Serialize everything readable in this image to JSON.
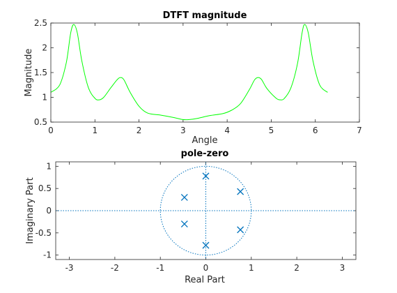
{
  "colors": {
    "magnitude_line": "#00ff00",
    "pole_zero": "#0072bd",
    "axes": "#262626"
  },
  "chart_data": [
    {
      "type": "line",
      "title": "DTFT magnitude",
      "xlabel": "Angle",
      "ylabel": "Magnitude",
      "xlim": [
        0,
        7
      ],
      "ylim": [
        0.5,
        2.5
      ],
      "xticks": [
        "0",
        "1",
        "2",
        "3",
        "4",
        "5",
        "6",
        "7"
      ],
      "yticks": [
        "0.5",
        "1",
        "1.5",
        "2",
        "2.5"
      ],
      "grid": false,
      "series": [
        {
          "x": [
            0,
            0.2,
            0.35,
            0.45,
            0.52,
            0.6,
            0.7,
            0.85,
            1.0,
            1.1,
            1.2,
            1.35,
            1.5,
            1.58,
            1.66,
            1.8,
            2.0,
            2.2,
            2.5,
            2.8,
            3.0,
            3.14,
            3.3,
            3.6,
            3.9,
            4.1,
            4.3,
            4.5,
            4.62,
            4.7,
            4.78,
            4.9,
            5.1,
            5.2,
            5.3,
            5.45,
            5.6,
            5.7,
            5.76,
            5.84,
            5.95,
            6.1,
            6.28
          ],
          "y": [
            1.1,
            1.25,
            1.7,
            2.3,
            2.47,
            2.3,
            1.75,
            1.2,
            0.98,
            0.95,
            1.0,
            1.18,
            1.35,
            1.4,
            1.35,
            1.1,
            0.82,
            0.68,
            0.64,
            0.59,
            0.55,
            0.55,
            0.57,
            0.63,
            0.67,
            0.74,
            0.87,
            1.15,
            1.35,
            1.4,
            1.36,
            1.18,
            0.99,
            0.95,
            0.98,
            1.2,
            1.7,
            2.3,
            2.47,
            2.3,
            1.72,
            1.25,
            1.1
          ]
        }
      ]
    },
    {
      "type": "scatter",
      "title": "pole-zero",
      "xlabel": "Real Part",
      "ylabel": "Imaginary Part",
      "xlim": [
        -3.3,
        3.3
      ],
      "ylim": [
        -1.1,
        1.1
      ],
      "xticks": [
        "-3",
        "-2",
        "-1",
        "0",
        "1",
        "2",
        "3"
      ],
      "yticks": [
        "-1",
        "-0.5",
        "0",
        "0.5",
        "1"
      ],
      "unit_circle": true,
      "poles": {
        "x": [
          0,
          0.76,
          -0.47,
          -0.47,
          0.76,
          0
        ],
        "y": [
          0.78,
          0.43,
          0.3,
          -0.3,
          -0.43,
          -0.78
        ]
      }
    }
  ]
}
